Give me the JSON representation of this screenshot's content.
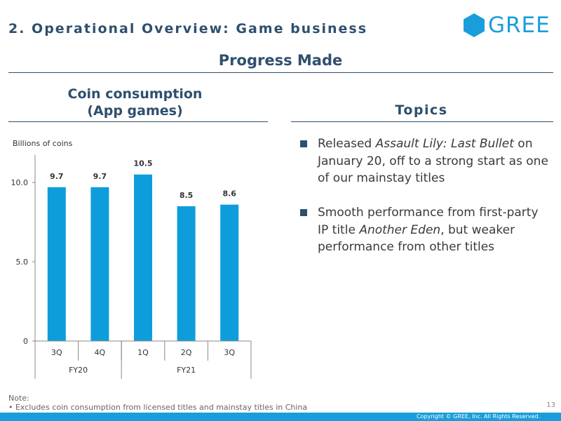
{
  "header": {
    "section_title": "2. Operational Overview: Game business",
    "subtitle": "Progress Made",
    "logo_text": "GREE"
  },
  "chart_heading": {
    "line1": "Coin consumption",
    "line2": "(App games)"
  },
  "topics_heading": "Topics",
  "topics": [
    {
      "pre": "Released ",
      "em": "Assault Lily: Last Bullet",
      "post": " on January 20, off to a strong start as one of our mainstay titles"
    },
    {
      "pre": "Smooth performance from first-party IP title ",
      "em": "Another Eden",
      "post": ", but weaker performance from other titles"
    }
  ],
  "chart_data": {
    "type": "bar",
    "ylabel": "Billions of coins",
    "categories": [
      "3Q",
      "4Q",
      "1Q",
      "2Q",
      "3Q"
    ],
    "groups": [
      {
        "label": "FY20",
        "span": 2
      },
      {
        "label": "FY21",
        "span": 3
      }
    ],
    "values": [
      9.7,
      9.7,
      10.5,
      8.5,
      8.6
    ],
    "value_labels": [
      "9.7",
      "9.7",
      "10.5",
      "8.5",
      "8.6"
    ],
    "yticks": [
      {
        "value": 0,
        "label": "0"
      },
      {
        "value": 5,
        "label": "5.0"
      },
      {
        "value": 10,
        "label": "10.0"
      }
    ],
    "ylim": [
      0,
      12
    ],
    "bar_color": "#0e9ddb"
  },
  "note": {
    "label": "Note:",
    "text": "• Excludes coin consumption from licensed titles and mainstay titles in China"
  },
  "page_number": "13",
  "footer": {
    "copyright": "Copyright © GREE, Inc. All Rights Reserved."
  },
  "colors": {
    "accent": "#1a9ddb",
    "heading": "#2f4f6e"
  }
}
